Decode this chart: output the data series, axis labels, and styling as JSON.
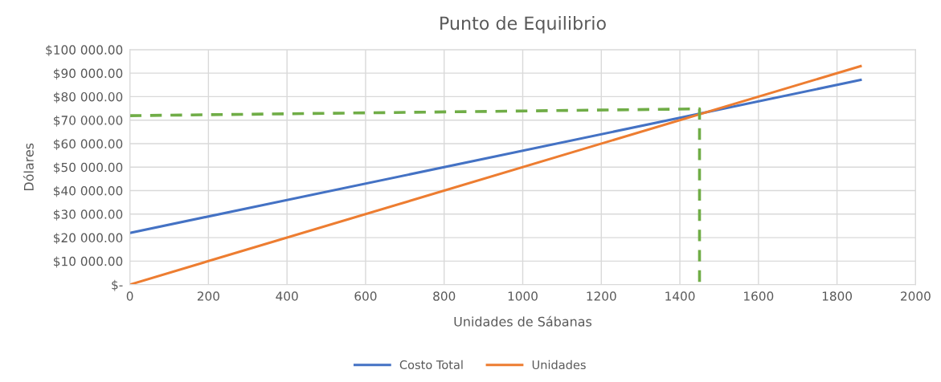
{
  "chart_data": {
    "type": "line",
    "title": "Punto de Equilibrio",
    "xlabel": "Unidades de Sábanas",
    "ylabel": "Dólares",
    "xlim": [
      0,
      2000
    ],
    "xticks": [
      0,
      200,
      400,
      600,
      800,
      1000,
      1200,
      1400,
      1600,
      1800,
      2000
    ],
    "ylim": [
      0,
      100000
    ],
    "yticks": [
      {
        "value": 0,
        "label": "$-"
      },
      {
        "value": 10000,
        "label": "$10 000.00"
      },
      {
        "value": 20000,
        "label": "$20 000.00"
      },
      {
        "value": 30000,
        "label": "$30 000.00"
      },
      {
        "value": 40000,
        "label": "$40 000.00"
      },
      {
        "value": 50000,
        "label": "$50 000.00"
      },
      {
        "value": 60000,
        "label": "$60 000.00"
      },
      {
        "value": 70000,
        "label": "$70 000.00"
      },
      {
        "value": 80000,
        "label": "$80 000.00"
      },
      {
        "value": 90000,
        "label": "$90 000.00"
      },
      {
        "value": 100000,
        "label": "$100 000.00"
      }
    ],
    "grid": true,
    "legend": "bottom",
    "marker": "none",
    "series": [
      {
        "name": "Costo Total",
        "color": "#4472c4",
        "x": [
          0,
          1860
        ],
        "values": [
          22000,
          87100
        ]
      },
      {
        "name": "Unidades",
        "color": "#ed7d31",
        "x": [
          0,
          1860
        ],
        "values": [
          0,
          93000
        ]
      },
      {
        "color": "#70ad47",
        "line_style": "dashed",
        "x": [
          0,
          1450,
          1450
        ],
        "values": [
          71900,
          74800,
          0
        ]
      }
    ]
  }
}
